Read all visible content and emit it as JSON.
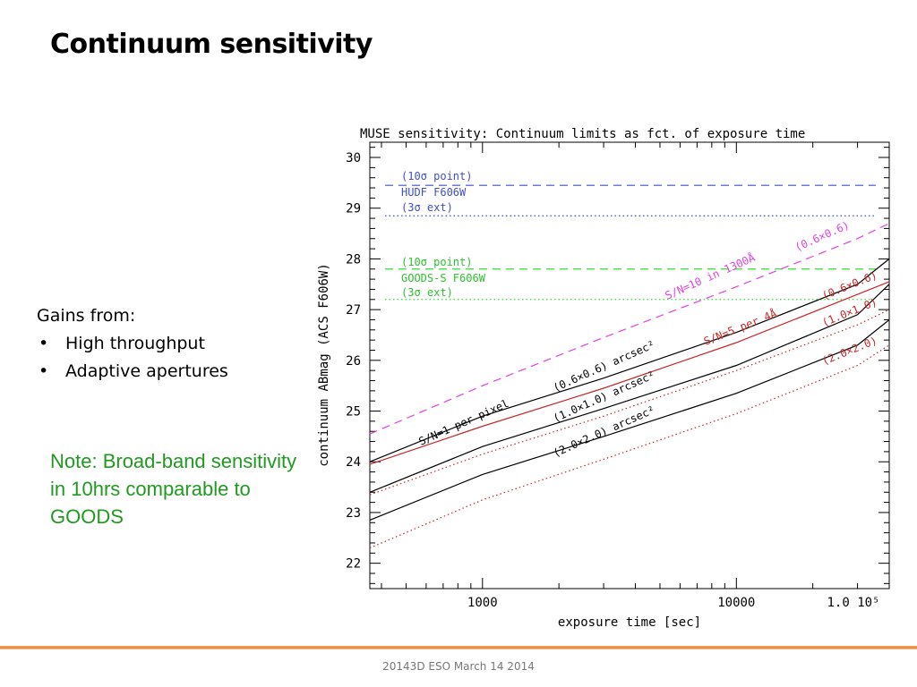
{
  "slide": {
    "title": "Continuum sensitivity",
    "gains_heading": "Gains from:",
    "gains_items": [
      "High throughput",
      "Adaptive apertures"
    ],
    "note": "Note: Broad-band sensitivity in 10hrs comparable to GOODS",
    "footer": "20143D ESO March 14 2014"
  },
  "colors": {
    "black": "#000000",
    "magenta": "#e040e0",
    "red": "#c62828",
    "blue": "#3f4fd0",
    "green": "#2ee02e",
    "note_green": "#1f9a1f",
    "footer_orange": "#e8873a"
  },
  "chart_data": {
    "type": "line",
    "title": "MUSE sensitivity: Continuum limits as fct. of exposure time",
    "xlabel": "exposure time [sec]",
    "ylabel": "continuum ABmag (ACS F606W)",
    "x_scale": "log",
    "xlim": [
      360,
      40000
    ],
    "ylim": [
      21.5,
      30.3
    ],
    "x_tick_labels": [
      {
        "x": 1000,
        "label": "1000"
      },
      {
        "x": 10000,
        "label": "10000"
      },
      {
        "x": 100000,
        "label": "1.0  10⁵"
      }
    ],
    "y_ticks": [
      22,
      23,
      24,
      25,
      26,
      27,
      28,
      29,
      30
    ],
    "series": [
      {
        "name": "S/N=10 in 1300Å (0.6×0.6)",
        "color": "magenta",
        "style": "dashed",
        "x": [
          360,
          1000,
          3000,
          10000,
          30000,
          40000
        ],
        "y": [
          24.55,
          25.5,
          26.45,
          27.45,
          28.4,
          28.7
        ]
      },
      {
        "name": "S/N=5 per 4Å (0.6×0.6)",
        "color": "red",
        "style": "solid",
        "x": [
          360,
          1000,
          3000,
          10000,
          30000,
          40000
        ],
        "y": [
          23.95,
          24.7,
          25.45,
          26.35,
          27.3,
          27.55
        ]
      },
      {
        "name": "S/N=1 per pixel (0.6×0.6) arcsec²",
        "color": "black",
        "style": "solid",
        "x": [
          360,
          1000,
          3000,
          10000,
          30000,
          40000
        ],
        "y": [
          24.0,
          24.9,
          25.65,
          26.55,
          27.5,
          28.0
        ]
      },
      {
        "name": "S/N=5 per 4Å (1.0×1.0)",
        "color": "red",
        "style": "dotted",
        "x": [
          360,
          1000,
          3000,
          10000,
          30000,
          40000
        ],
        "y": [
          23.35,
          24.15,
          24.9,
          25.8,
          26.7,
          27.0
        ]
      },
      {
        "name": "S/N=1 per pixel (1.0×1.0) arcsec²",
        "color": "black",
        "style": "solid",
        "x": [
          360,
          1000,
          3000,
          10000,
          30000,
          40000
        ],
        "y": [
          23.4,
          24.3,
          25.05,
          25.9,
          26.9,
          27.5
        ]
      },
      {
        "name": "S/N=5 per 4Å (2.0×2.0)",
        "color": "red",
        "style": "dotted",
        "x": [
          360,
          1000,
          3000,
          10000,
          30000,
          40000
        ],
        "y": [
          22.3,
          23.25,
          24.05,
          24.95,
          25.9,
          26.3
        ]
      },
      {
        "name": "S/N=1 per pixel (2.0×2.0) arcsec²",
        "color": "black",
        "style": "solid",
        "x": [
          360,
          1000,
          3000,
          10000,
          30000,
          40000
        ],
        "y": [
          22.85,
          23.75,
          24.5,
          25.35,
          26.3,
          26.8
        ]
      }
    ],
    "reference_lines": [
      {
        "y": 29.45,
        "color": "blue",
        "style": "dashed"
      },
      {
        "y": 28.85,
        "color": "blue",
        "style": "dotted"
      },
      {
        "y": 27.8,
        "color": "green",
        "style": "dashed"
      },
      {
        "y": 27.2,
        "color": "green",
        "style": "dotted"
      }
    ],
    "labels": {
      "hudf_point": "(10σ  point)",
      "hudf_name": "HUDF F606W",
      "hudf_ext": "(3σ  ext)",
      "goods_point": "(10σ  point)",
      "goods_name": "GOODS-S F606W",
      "goods_ext": "(3σ  ext)",
      "sn10": "S/N=10  in  1300Å",
      "sn10_ap": "(0.6×0.6)",
      "sn5": "S/N=5  per  4Å",
      "red_ap1": "(0.6×0.6)",
      "red_ap2": "(1.0×1.0)",
      "red_ap3": "(2.0×2.0)",
      "sn1": "S/N=1  per  pixel",
      "black_ap1": "(0.6×0.6)  arcsec²",
      "black_ap2": "(1.0×1.0)  arcsec²",
      "black_ap3": "(2.0×2.0)  arcsec²"
    }
  }
}
